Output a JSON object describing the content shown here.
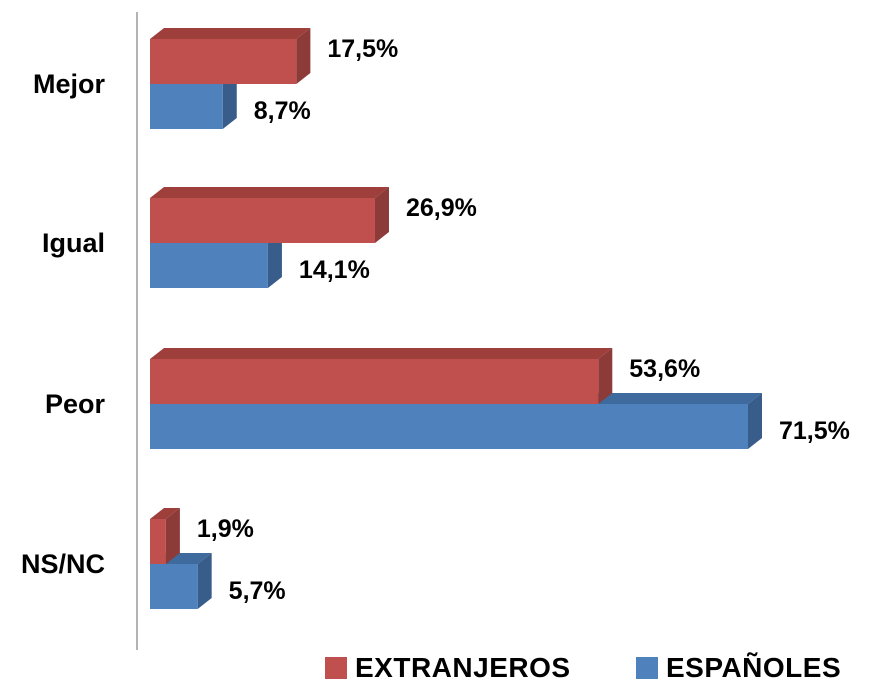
{
  "chart_data": {
    "type": "bar",
    "orientation": "horizontal",
    "three_d": true,
    "categories": [
      "Mejor",
      "Igual",
      "Peor",
      "NS/NC"
    ],
    "series": [
      {
        "name": "EXTRANJEROS",
        "color": "#C0504D",
        "side_color": "#8C3B38",
        "top_color": "#9E3F3C",
        "values": [
          17.5,
          26.9,
          53.6,
          1.9
        ],
        "labels": [
          "17,5%",
          "26,9%",
          "53,6%",
          "1,9%"
        ]
      },
      {
        "name": "ESPAÑOLES",
        "color": "#4F81BD",
        "side_color": "#385D8A",
        "top_color": "#3F6A9E",
        "values": [
          8.7,
          14.1,
          71.5,
          5.7
        ],
        "labels": [
          "8,7%",
          "14,1%",
          "71,5%",
          "5,7%"
        ]
      }
    ],
    "xlim": [
      0,
      75
    ],
    "grid": false,
    "legend_position": "bottom-right"
  }
}
